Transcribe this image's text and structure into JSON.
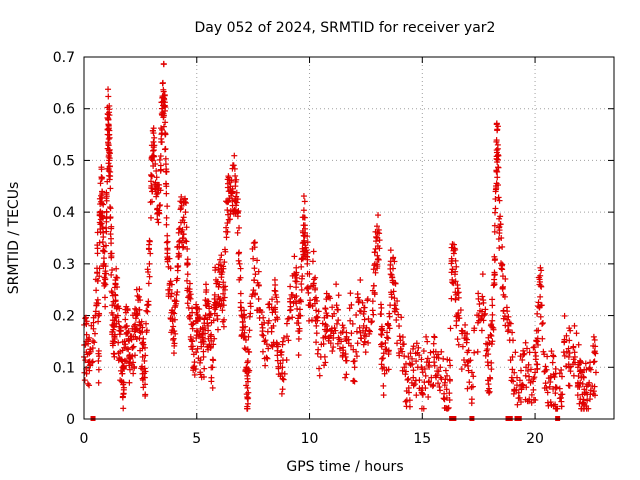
{
  "chart_data": {
    "type": "scatter",
    "title": "Day 052 of 2024, SRMTID for receiver yar2",
    "xlabel": "GPS time / hours",
    "ylabel": "SRMTID / TECUs",
    "xlim": [
      0,
      23.5
    ],
    "ylim": [
      0,
      0.7
    ],
    "x_ticks": [
      0,
      5,
      10,
      15,
      20
    ],
    "x_tick_labels": [
      "0",
      "5",
      "10",
      "15",
      "20"
    ],
    "y_ticks": [
      0,
      0.1,
      0.2,
      0.3,
      0.4,
      0.5,
      0.6,
      0.7
    ],
    "y_tick_labels": [
      "0",
      "0.1",
      "0.2",
      "0.3",
      "0.4",
      "0.5",
      "0.6",
      "0.7"
    ],
    "grid": true,
    "marker": "+",
    "color": "#e00000",
    "series": [
      {
        "name": "SRMTID",
        "points": [
          [
            0.0,
            0.12
          ],
          [
            0.1,
            0.15
          ],
          [
            0.2,
            0.11
          ],
          [
            0.3,
            0.13
          ],
          [
            0.5,
            0.2
          ],
          [
            0.6,
            0.33
          ],
          [
            0.65,
            0.07
          ],
          [
            0.7,
            0.38
          ],
          [
            0.75,
            0.42
          ],
          [
            0.8,
            0.44
          ],
          [
            0.85,
            0.36
          ],
          [
            0.9,
            0.3
          ],
          [
            0.95,
            0.26
          ],
          [
            1.0,
            0.4
          ],
          [
            1.05,
            0.59
          ],
          [
            1.08,
            0.57
          ],
          [
            1.1,
            0.52
          ],
          [
            1.12,
            0.55
          ],
          [
            1.15,
            0.47
          ],
          [
            1.2,
            0.34
          ],
          [
            1.25,
            0.22
          ],
          [
            1.3,
            0.18
          ],
          [
            1.35,
            0.16
          ],
          [
            1.4,
            0.26
          ],
          [
            1.5,
            0.2
          ],
          [
            1.6,
            0.13
          ],
          [
            1.7,
            0.1
          ],
          [
            1.75,
            0.07
          ],
          [
            1.8,
            0.15
          ],
          [
            1.9,
            0.18
          ],
          [
            2.0,
            0.12
          ],
          [
            2.1,
            0.16
          ],
          [
            2.2,
            0.14
          ],
          [
            2.3,
            0.2
          ],
          [
            2.4,
            0.23
          ],
          [
            2.5,
            0.18
          ],
          [
            2.6,
            0.12
          ],
          [
            2.7,
            0.08
          ],
          [
            2.8,
            0.22
          ],
          [
            2.9,
            0.3
          ],
          [
            3.0,
            0.47
          ],
          [
            3.05,
            0.5
          ],
          [
            3.1,
            0.52
          ],
          [
            3.2,
            0.43
          ],
          [
            3.3,
            0.38
          ],
          [
            3.4,
            0.48
          ],
          [
            3.45,
            0.59
          ],
          [
            3.5,
            0.65
          ],
          [
            3.55,
            0.62
          ],
          [
            3.6,
            0.55
          ],
          [
            3.65,
            0.45
          ],
          [
            3.7,
            0.33
          ],
          [
            3.8,
            0.25
          ],
          [
            3.9,
            0.21
          ],
          [
            4.0,
            0.17
          ],
          [
            4.1,
            0.24
          ],
          [
            4.2,
            0.36
          ],
          [
            4.3,
            0.38
          ],
          [
            4.4,
            0.35
          ],
          [
            4.5,
            0.4
          ],
          [
            4.6,
            0.28
          ],
          [
            4.7,
            0.2
          ],
          [
            4.8,
            0.15
          ],
          [
            4.9,
            0.11
          ],
          [
            5.0,
            0.19
          ],
          [
            5.1,
            0.16
          ],
          [
            5.2,
            0.14
          ],
          [
            5.3,
            0.12
          ],
          [
            5.4,
            0.22
          ],
          [
            5.5,
            0.18
          ],
          [
            5.6,
            0.16
          ],
          [
            5.7,
            0.1
          ],
          [
            5.8,
            0.24
          ],
          [
            5.9,
            0.2
          ],
          [
            6.0,
            0.26
          ],
          [
            6.1,
            0.28
          ],
          [
            6.2,
            0.22
          ],
          [
            6.3,
            0.37
          ],
          [
            6.4,
            0.42
          ],
          [
            6.5,
            0.45
          ],
          [
            6.6,
            0.44
          ],
          [
            6.7,
            0.47
          ],
          [
            6.8,
            0.4
          ],
          [
            6.9,
            0.3
          ],
          [
            7.0,
            0.2
          ],
          [
            7.1,
            0.16
          ],
          [
            7.2,
            0.1
          ],
          [
            7.25,
            0.06
          ],
          [
            7.3,
            0.13
          ],
          [
            7.5,
            0.31
          ],
          [
            7.6,
            0.28
          ],
          [
            7.8,
            0.21
          ],
          [
            8.0,
            0.15
          ],
          [
            8.2,
            0.19
          ],
          [
            8.4,
            0.18
          ],
          [
            8.5,
            0.24
          ],
          [
            8.6,
            0.14
          ],
          [
            8.8,
            0.1
          ],
          [
            9.0,
            0.16
          ],
          [
            9.2,
            0.24
          ],
          [
            9.4,
            0.28
          ],
          [
            9.5,
            0.17
          ],
          [
            9.6,
            0.23
          ],
          [
            9.7,
            0.34
          ],
          [
            9.75,
            0.39
          ],
          [
            9.8,
            0.36
          ],
          [
            9.9,
            0.3
          ],
          [
            10.0,
            0.22
          ],
          [
            10.2,
            0.27
          ],
          [
            10.3,
            0.18
          ],
          [
            10.5,
            0.12
          ],
          [
            10.7,
            0.16
          ],
          [
            10.8,
            0.2
          ],
          [
            11.0,
            0.17
          ],
          [
            11.2,
            0.22
          ],
          [
            11.4,
            0.15
          ],
          [
            11.6,
            0.12
          ],
          [
            11.8,
            0.19
          ],
          [
            12.0,
            0.1
          ],
          [
            12.2,
            0.23
          ],
          [
            12.4,
            0.18
          ],
          [
            12.5,
            0.16
          ],
          [
            12.8,
            0.21
          ],
          [
            12.9,
            0.3
          ],
          [
            13.0,
            0.35
          ],
          [
            13.1,
            0.33
          ],
          [
            13.2,
            0.14
          ],
          [
            13.3,
            0.1
          ],
          [
            13.5,
            0.13
          ],
          [
            13.6,
            0.28
          ],
          [
            13.7,
            0.31
          ],
          [
            13.8,
            0.22
          ],
          [
            14.0,
            0.16
          ],
          [
            14.2,
            0.1
          ],
          [
            14.4,
            0.06
          ],
          [
            14.6,
            0.08
          ],
          [
            14.8,
            0.1
          ],
          [
            15.0,
            0.06
          ],
          [
            15.2,
            0.11
          ],
          [
            15.4,
            0.08
          ],
          [
            15.6,
            0.13
          ],
          [
            15.8,
            0.1
          ],
          [
            16.0,
            0.07
          ],
          [
            16.2,
            0.05
          ],
          [
            16.3,
            0.31
          ],
          [
            16.4,
            0.32
          ],
          [
            16.5,
            0.24
          ],
          [
            16.6,
            0.2
          ],
          [
            16.8,
            0.14
          ],
          [
            17.0,
            0.11
          ],
          [
            17.2,
            0.09
          ],
          [
            17.5,
            0.2
          ],
          [
            17.7,
            0.23
          ],
          [
            17.9,
            0.11
          ],
          [
            18.0,
            0.08
          ],
          [
            18.1,
            0.19
          ],
          [
            18.2,
            0.26
          ],
          [
            18.25,
            0.44
          ],
          [
            18.3,
            0.52
          ],
          [
            18.35,
            0.53
          ],
          [
            18.4,
            0.37
          ],
          [
            18.5,
            0.35
          ],
          [
            18.6,
            0.24
          ],
          [
            18.8,
            0.18
          ],
          [
            19.0,
            0.12
          ],
          [
            19.2,
            0.08
          ],
          [
            19.4,
            0.06
          ],
          [
            19.6,
            0.1
          ],
          [
            19.8,
            0.07
          ],
          [
            20.0,
            0.09
          ],
          [
            20.1,
            0.15
          ],
          [
            20.2,
            0.27
          ],
          [
            20.3,
            0.22
          ],
          [
            20.5,
            0.06
          ],
          [
            20.7,
            0.08
          ],
          [
            20.9,
            0.05
          ],
          [
            21.1,
            0.04
          ],
          [
            21.3,
            0.15
          ],
          [
            21.5,
            0.12
          ],
          [
            21.7,
            0.14
          ],
          [
            21.9,
            0.1
          ],
          [
            22.0,
            0.07
          ],
          [
            22.1,
            0.03
          ],
          [
            22.2,
            0.05
          ],
          [
            22.4,
            0.07
          ],
          [
            22.6,
            0.11
          ],
          [
            22.7,
            0.09
          ]
        ]
      }
    ],
    "zero_markers_x": [
      0.4,
      16.3,
      16.4,
      17.2,
      18.8,
      18.9,
      19.2,
      19.3,
      21.0
    ]
  }
}
